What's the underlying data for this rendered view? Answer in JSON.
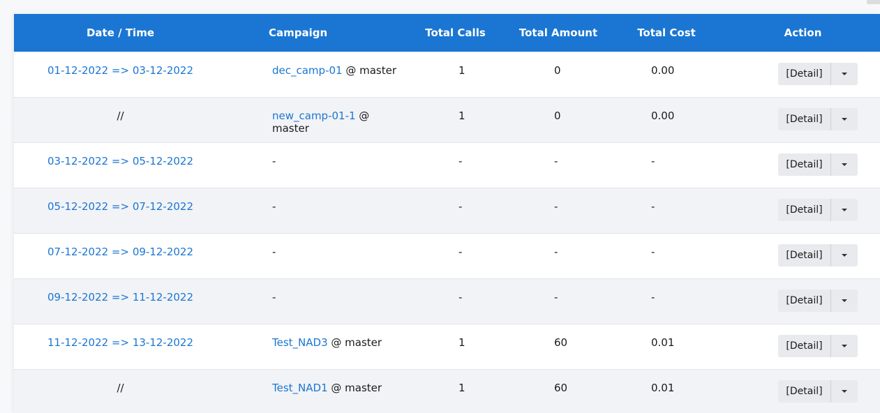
{
  "table": {
    "headers": {
      "date": "Date / Time",
      "campaign": "Campaign",
      "calls": "Total Calls",
      "amount": "Total Amount",
      "cost": "Total Cost",
      "action": "Action"
    },
    "rows": [
      {
        "date": "01-12-2022 => 03-12-2022",
        "date_link": true,
        "campaign": "dec_camp-01",
        "campaign_suffix": " @ master",
        "calls": "1",
        "amount": "0",
        "cost": "0.00",
        "detail": "[Detail]"
      },
      {
        "date": "//",
        "date_link": false,
        "campaign": "new_camp-01-1",
        "campaign_suffix": " @ master",
        "calls": "1",
        "amount": "0",
        "cost": "0.00",
        "detail": "[Detail]"
      },
      {
        "date": "03-12-2022 => 05-12-2022",
        "date_link": true,
        "campaign": "-",
        "campaign_suffix": "",
        "calls": "-",
        "amount": "-",
        "cost": "-",
        "detail": "[Detail]"
      },
      {
        "date": "05-12-2022 => 07-12-2022",
        "date_link": true,
        "campaign": "-",
        "campaign_suffix": "",
        "calls": "-",
        "amount": "-",
        "cost": "-",
        "detail": "[Detail]"
      },
      {
        "date": "07-12-2022 => 09-12-2022",
        "date_link": true,
        "campaign": "-",
        "campaign_suffix": "",
        "calls": "-",
        "amount": "-",
        "cost": "-",
        "detail": "[Detail]"
      },
      {
        "date": "09-12-2022 => 11-12-2022",
        "date_link": true,
        "campaign": "-",
        "campaign_suffix": "",
        "calls": "-",
        "amount": "-",
        "cost": "-",
        "detail": "[Detail]"
      },
      {
        "date": "11-12-2022 => 13-12-2022",
        "date_link": true,
        "campaign": "Test_NAD3",
        "campaign_suffix": " @ master",
        "calls": "1",
        "amount": "60",
        "cost": "0.01",
        "detail": "[Detail]"
      },
      {
        "date": "//",
        "date_link": false,
        "campaign": "Test_NAD1",
        "campaign_suffix": " @ master",
        "calls": "1",
        "amount": "60",
        "cost": "0.01",
        "detail": "[Detail]"
      }
    ]
  },
  "colors": {
    "header_bg": "#1a76d2",
    "link": "#1a76d2",
    "row_alt": "#f2f3f6"
  },
  "icons": {
    "dropdown": "chevron-down-icon"
  }
}
